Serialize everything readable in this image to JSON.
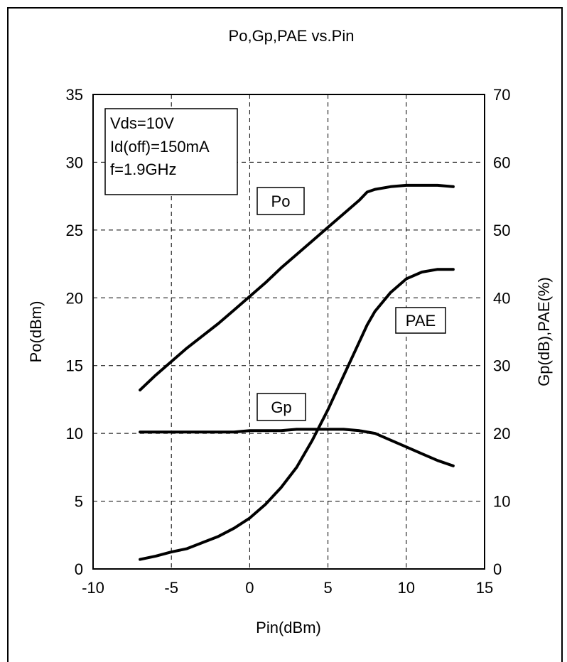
{
  "chart_data": {
    "type": "line",
    "title": "Po,Gp,PAE vs.Pin",
    "xlabel": "Pin(dBm)",
    "ylabel_left": "Po(dBm)",
    "ylabel_right": "Gp(dB),PAE(%)",
    "xlim": [
      -10,
      15
    ],
    "ylim_left": [
      0,
      35
    ],
    "ylim_right": [
      0,
      70
    ],
    "x_ticks": [
      "-10",
      "-5",
      "0",
      "5",
      "10",
      "15"
    ],
    "y_left_ticks": [
      "0",
      "5",
      "10",
      "15",
      "20",
      "25",
      "30",
      "35"
    ],
    "y_right_ticks": [
      "0",
      "10",
      "20",
      "30",
      "40",
      "50",
      "60",
      "70"
    ],
    "grid": true,
    "grid_style": "dashed",
    "line_color": "#000000",
    "conditions": [
      "Vds=10V",
      "Id(off)=150mA",
      "f=1.9GHz"
    ],
    "series": [
      {
        "name": "Po",
        "axis": "left",
        "x": [
          -7,
          -6,
          -5,
          -4,
          -3,
          -2,
          -1,
          0,
          1,
          2,
          3,
          4,
          5,
          6,
          7,
          7.5,
          8,
          9,
          10,
          11,
          12,
          13
        ],
        "y": [
          13.2,
          14.3,
          15.3,
          16.3,
          17.2,
          18.1,
          19.1,
          20.1,
          21.1,
          22.2,
          23.2,
          24.2,
          25.2,
          26.2,
          27.2,
          27.8,
          28.0,
          28.2,
          28.3,
          28.3,
          28.3,
          28.2
        ]
      },
      {
        "name": "Gp",
        "axis": "right",
        "x": [
          -7,
          -6,
          -5,
          -4,
          -3,
          -2,
          -1,
          0,
          1,
          2,
          3,
          4,
          5,
          6,
          7,
          8,
          9,
          10,
          11,
          12,
          13
        ],
        "y": [
          20.2,
          20.2,
          20.2,
          20.2,
          20.2,
          20.2,
          20.2,
          20.4,
          20.4,
          20.4,
          20.6,
          20.6,
          20.6,
          20.6,
          20.4,
          20.0,
          19.0,
          18.0,
          17.0,
          16.0,
          15.2
        ]
      },
      {
        "name": "PAE",
        "axis": "right",
        "x": [
          -7,
          -6,
          -5,
          -4,
          -3,
          -2,
          -1,
          0,
          1,
          2,
          3,
          4,
          5,
          6,
          7,
          7.5,
          8,
          9,
          10,
          11,
          12,
          13
        ],
        "y": [
          1.4,
          1.9,
          2.5,
          3.0,
          3.9,
          4.8,
          6.0,
          7.5,
          9.5,
          12.0,
          15.0,
          19.0,
          23.5,
          28.5,
          33.5,
          36.0,
          38.0,
          40.8,
          42.8,
          43.8,
          44.2,
          44.2
        ]
      }
    ]
  }
}
